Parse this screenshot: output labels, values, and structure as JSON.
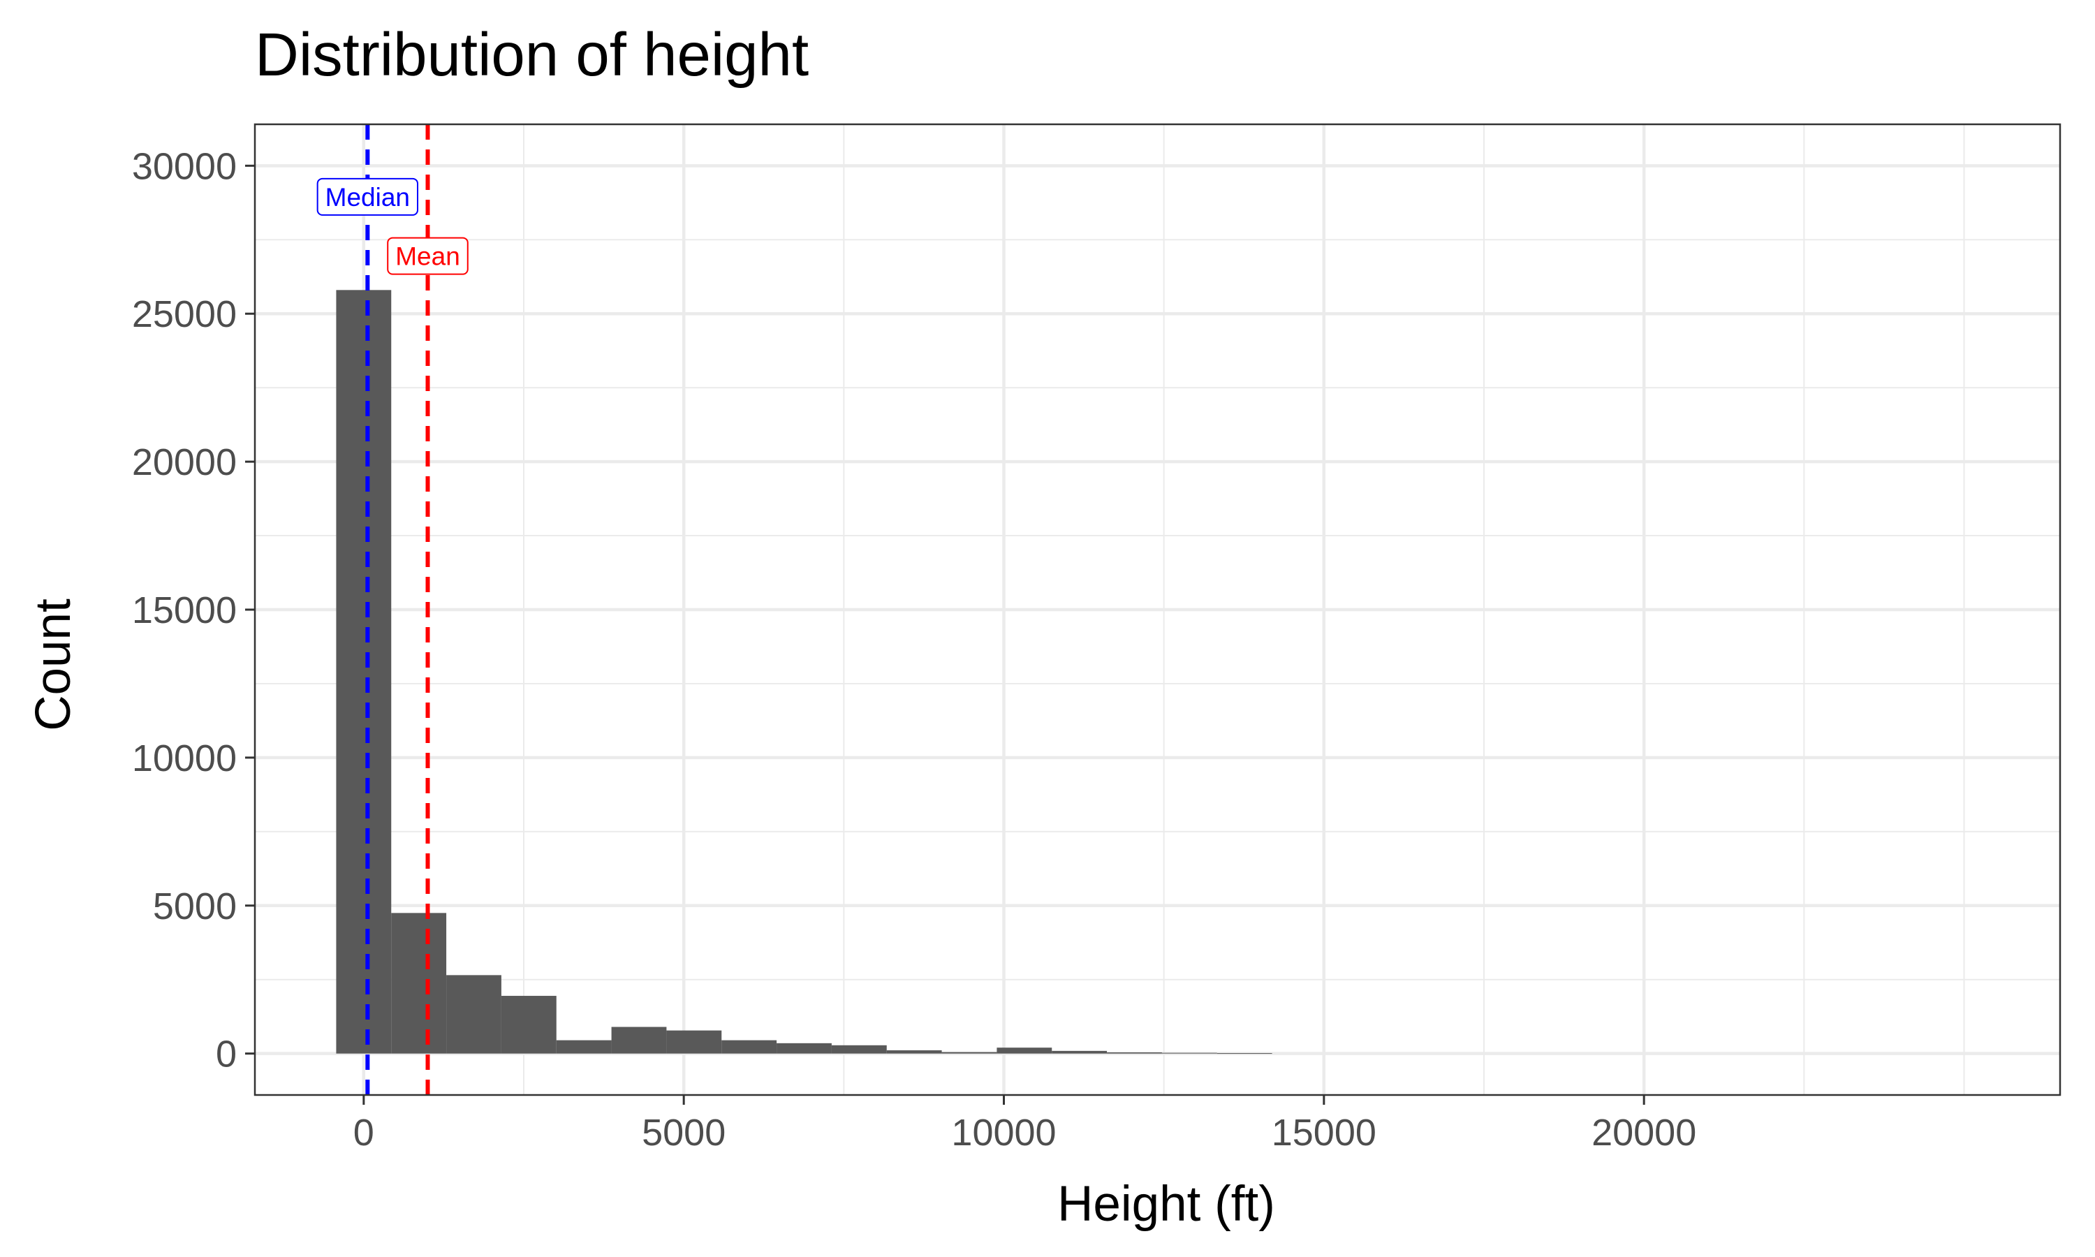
{
  "chart_data": {
    "type": "bar",
    "title": "Distribution of height",
    "xlabel": "Height (ft)",
    "ylabel": "Count",
    "xlim": [
      -1700,
      26500
    ],
    "ylim": [
      -1400,
      31400
    ],
    "x_ticks": [
      0,
      5000,
      10000,
      15000,
      20000
    ],
    "y_ticks": [
      0,
      5000,
      10000,
      15000,
      20000,
      25000,
      30000
    ],
    "x_minor_grid": [
      2500,
      7500,
      12500,
      17500,
      22500,
      25000
    ],
    "y_minor_grid": [
      2500,
      7500,
      12500,
      17500,
      22500,
      27500
    ],
    "grid": true,
    "bin_width": 860,
    "bins": [
      {
        "x": 0,
        "count": 25800
      },
      {
        "x": 860,
        "count": 4750
      },
      {
        "x": 1720,
        "count": 2650
      },
      {
        "x": 2580,
        "count": 1950
      },
      {
        "x": 3440,
        "count": 450
      },
      {
        "x": 4300,
        "count": 900
      },
      {
        "x": 5160,
        "count": 780
      },
      {
        "x": 6020,
        "count": 450
      },
      {
        "x": 6880,
        "count": 350
      },
      {
        "x": 7740,
        "count": 280
      },
      {
        "x": 8600,
        "count": 110
      },
      {
        "x": 9460,
        "count": 50
      },
      {
        "x": 10320,
        "count": 200
      },
      {
        "x": 11180,
        "count": 90
      },
      {
        "x": 12040,
        "count": 40
      },
      {
        "x": 12900,
        "count": 25
      },
      {
        "x": 13760,
        "count": 15
      }
    ],
    "annotations": [
      {
        "label": "Median",
        "x": 60,
        "y": 28950,
        "color": "#0000ff"
      },
      {
        "label": "Mean",
        "x": 1000,
        "y": 26950,
        "color": "#ff0000"
      }
    ],
    "vlines": [
      {
        "name": "median-line",
        "x": 60,
        "color": "#0000ff"
      },
      {
        "name": "mean-line",
        "x": 1000,
        "color": "#ff0000"
      }
    ],
    "colors": {
      "bar": "#595959",
      "grid": "#ebebeb",
      "panel_border": "#333333",
      "tick_text": "#4d4d4d"
    }
  }
}
